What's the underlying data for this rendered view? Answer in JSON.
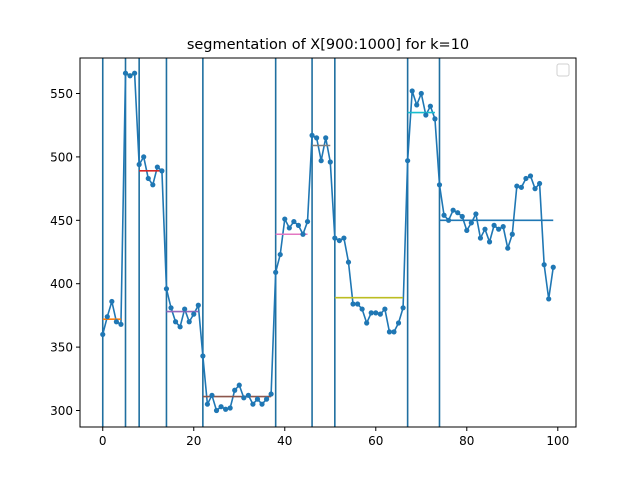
{
  "chart_data": {
    "type": "line",
    "title": "segmentation of X[900:1000] for k=10",
    "xlabel": "",
    "ylabel": "",
    "xlim": [
      -5,
      104
    ],
    "ylim": [
      287,
      578
    ],
    "xticks": [
      0,
      20,
      40,
      60,
      80,
      100
    ],
    "yticks": [
      300,
      350,
      400,
      450,
      500,
      550
    ],
    "grid": false,
    "legend": {
      "placement": "top-right",
      "entries": []
    },
    "colors": {
      "series": "#1f77b4",
      "boundary": "#1f6fa0",
      "segments": [
        "#ff7f0e",
        "#2ca02c",
        "#d62728",
        "#9467bd",
        "#8c564b",
        "#e377c2",
        "#7f7f7f",
        "#bcbd22",
        "#17becf",
        "#1f77b4"
      ]
    },
    "x": [
      0,
      1,
      2,
      3,
      4,
      5,
      6,
      7,
      8,
      9,
      10,
      11,
      12,
      13,
      14,
      15,
      16,
      17,
      18,
      19,
      20,
      21,
      22,
      23,
      24,
      25,
      26,
      27,
      28,
      29,
      30,
      31,
      32,
      33,
      34,
      35,
      36,
      37,
      38,
      39,
      40,
      41,
      42,
      43,
      44,
      45,
      46,
      47,
      48,
      49,
      50,
      51,
      52,
      53,
      54,
      55,
      56,
      57,
      58,
      59,
      60,
      61,
      62,
      63,
      64,
      65,
      66,
      67,
      68,
      69,
      70,
      71,
      72,
      73,
      74,
      75,
      76,
      77,
      78,
      79,
      80,
      81,
      82,
      83,
      84,
      85,
      86,
      87,
      88,
      89,
      90,
      91,
      92,
      93,
      94,
      95,
      96,
      97,
      98,
      99
    ],
    "y": [
      360,
      374,
      386,
      370,
      368,
      566,
      564,
      566,
      494,
      500,
      483,
      478,
      492,
      489,
      396,
      381,
      370,
      366,
      380,
      370,
      376,
      383,
      343,
      305,
      312,
      300,
      303,
      301,
      302,
      316,
      320,
      310,
      312,
      305,
      309,
      305,
      309,
      313,
      409,
      423,
      451,
      444,
      449,
      446,
      439,
      449,
      517,
      515,
      497,
      515,
      496,
      436,
      434,
      436,
      417,
      384,
      384,
      380,
      369,
      377,
      377,
      376,
      380,
      362,
      362,
      369,
      381,
      497,
      552,
      541,
      550,
      533,
      540,
      530,
      478,
      454,
      450,
      458,
      456,
      453,
      442,
      448,
      455,
      436,
      443,
      433,
      446,
      443,
      445,
      428,
      439,
      477,
      476,
      483,
      485,
      475,
      479,
      415,
      388,
      413
    ],
    "boundaries": [
      0,
      5,
      8,
      14,
      22,
      38,
      46,
      51,
      67,
      74
    ],
    "segments": [
      {
        "x_start": 0,
        "x_end": 4,
        "mean": 372
      },
      {
        "x_start": 5,
        "x_end": 7,
        "mean": 565
      },
      {
        "x_start": 8,
        "x_end": 13,
        "mean": 489
      },
      {
        "x_start": 14,
        "x_end": 21,
        "mean": 378
      },
      {
        "x_start": 22,
        "x_end": 37,
        "mean": 311
      },
      {
        "x_start": 38,
        "x_end": 45,
        "mean": 439
      },
      {
        "x_start": 46,
        "x_end": 50,
        "mean": 509
      },
      {
        "x_start": 51,
        "x_end": 66,
        "mean": 389
      },
      {
        "x_start": 67,
        "x_end": 73,
        "mean": 535
      },
      {
        "x_start": 74,
        "x_end": 99,
        "mean": 450
      }
    ]
  }
}
